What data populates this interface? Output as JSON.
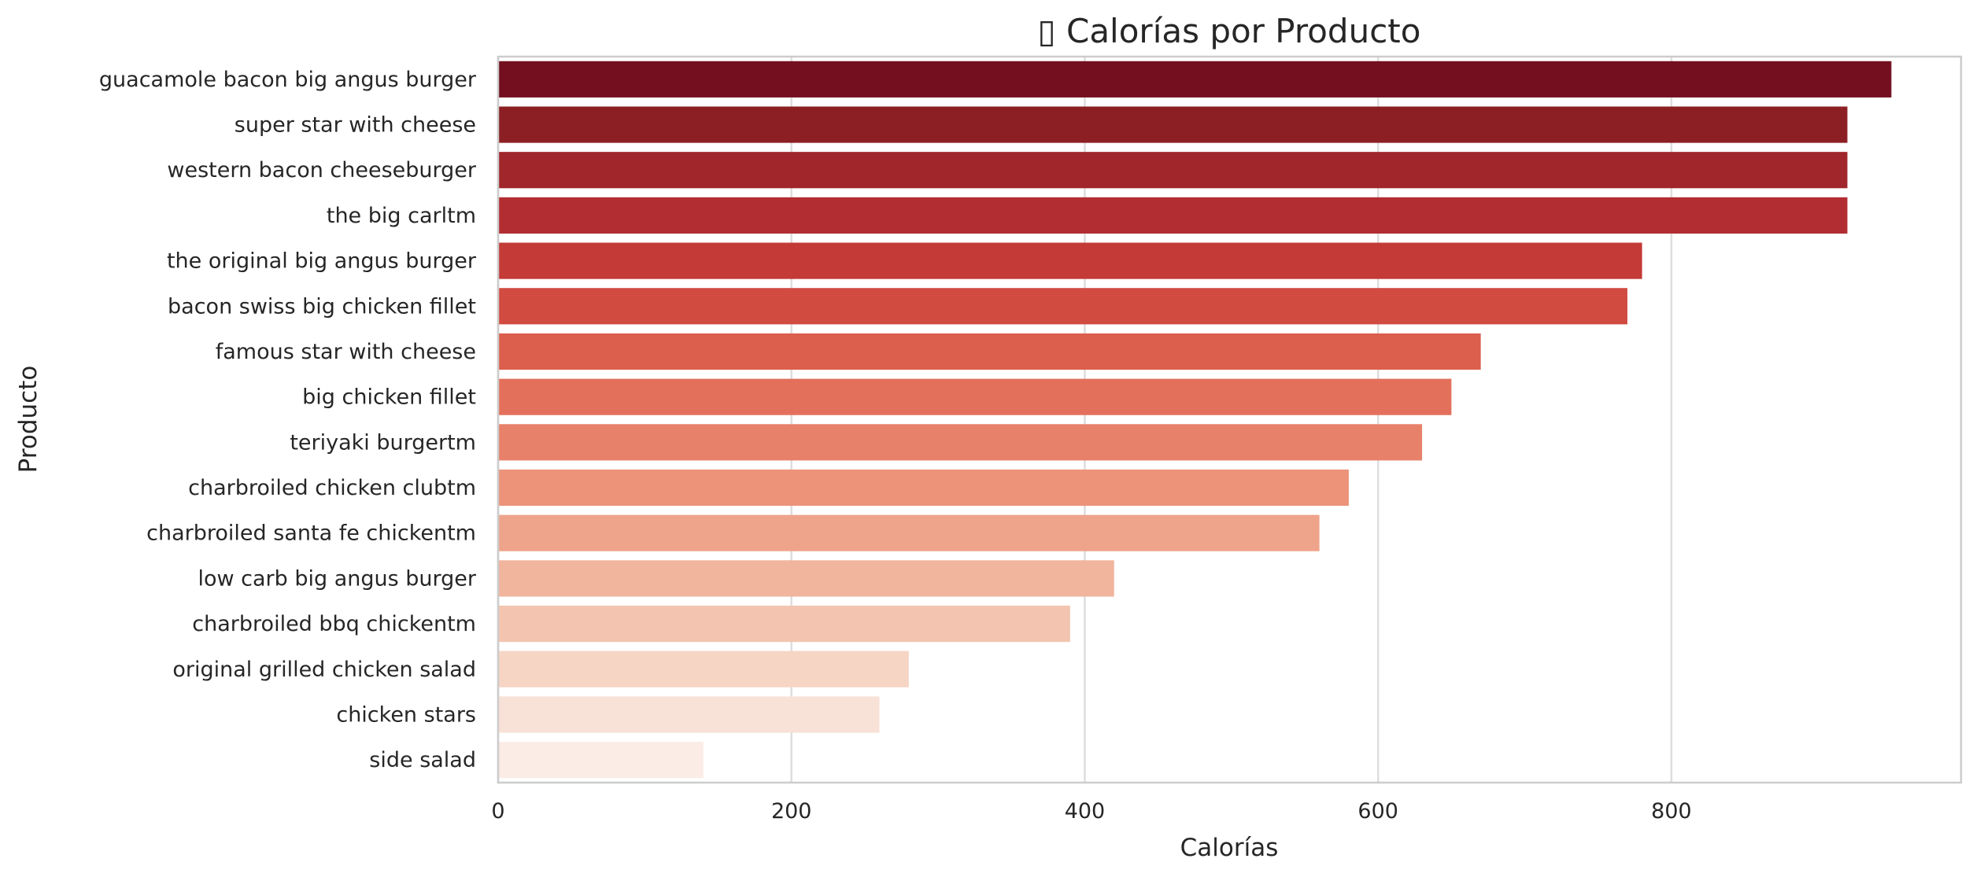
{
  "chart_data": {
    "type": "bar",
    "orientation": "horizontal",
    "title": "▯ Calorías por Producto",
    "xlabel": "Calorías",
    "ylabel": "Producto",
    "xlim": [
      0,
      997.5
    ],
    "xticks": [
      0,
      200,
      400,
      600,
      800
    ],
    "grid": true,
    "categories": [
      "guacamole bacon big angus burger",
      "super star with cheese",
      "western bacon cheeseburger",
      "the big carltm",
      "the original big angus burger",
      "bacon swiss big chicken fillet",
      "famous star with cheese",
      "big chicken fillet",
      "teriyaki burgertm",
      "charbroiled chicken clubtm",
      "charbroiled santa fe chickentm",
      "low carb big angus burger",
      "charbroiled bbq chickentm",
      "original grilled chicken salad",
      "chicken stars",
      "side salad"
    ],
    "values": [
      950,
      920,
      920,
      920,
      780,
      770,
      670,
      650,
      630,
      580,
      560,
      420,
      390,
      280,
      260,
      140
    ],
    "colors": [
      "#730f1f",
      "#8b1f24",
      "#a0262c",
      "#b22d31",
      "#c33a36",
      "#d14b41",
      "#dc5e4c",
      "#e3705b",
      "#e8816a",
      "#ec937a",
      "#eea48b",
      "#f1b49d",
      "#f3c4b0",
      "#f6d5c5",
      "#f8e1d7",
      "#fbece6"
    ]
  }
}
